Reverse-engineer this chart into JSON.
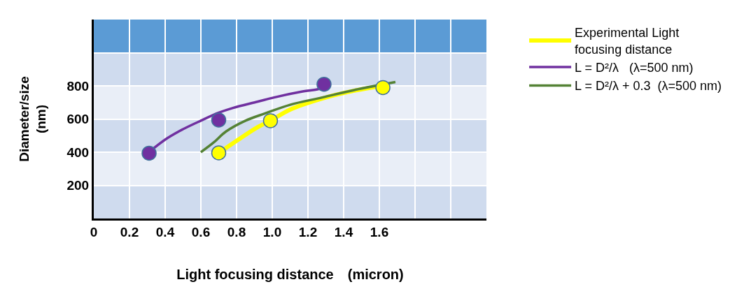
{
  "chart_data": {
    "type": "line",
    "xlabel": "Light focusing distance　(micron)",
    "ylabel": "Diameter/size\n(nm)",
    "xlim": [
      0,
      2.2
    ],
    "ylim": [
      0,
      1200
    ],
    "xticks": [
      {
        "value": 0,
        "label": "0"
      },
      {
        "value": 0.2,
        "label": "0.2"
      },
      {
        "value": 0.4,
        "label": "0.4"
      },
      {
        "value": 0.6,
        "label": "0.6"
      },
      {
        "value": 0.8,
        "label": "0.8"
      },
      {
        "value": 1.0,
        "label": "1.0"
      },
      {
        "value": 1.2,
        "label": "1.2"
      },
      {
        "value": 1.4,
        "label": "1.4"
      },
      {
        "value": 1.6,
        "label": "1.6"
      },
      {
        "value": 1.8,
        "label": null
      },
      {
        "value": 2.0,
        "label": null
      },
      {
        "value": 2.2,
        "label": null
      }
    ],
    "yticks": [
      200,
      400,
      600,
      800,
      {
        "value": 1000,
        "label": null
      }
    ],
    "grid": true,
    "legend": "right",
    "marker": "none",
    "line_style": "solid",
    "bands": [
      {
        "axis": "y",
        "from": 0,
        "to": 200,
        "color": "#cfdbee"
      },
      {
        "axis": "y",
        "from": 400,
        "to": 600,
        "color": "#cfdbee"
      },
      {
        "axis": "y",
        "from": 800,
        "to": 1000,
        "color": "#cfdbee"
      },
      {
        "axis": "y",
        "from": 1000,
        "to": 1200,
        "color": "#5b9bd5"
      }
    ],
    "series": [
      {
        "name": "Experimental Light\nfocusing distance",
        "color": "#ffff00",
        "x": [
          0.72,
          0.81,
          0.92,
          0.99,
          1.1,
          1.28,
          1.46,
          1.62
        ],
        "values": [
          410,
          476,
          552,
          590,
          657,
          724,
          771,
          800
        ]
      },
      {
        "name": "L = D²/λ   (λ=500 nm)",
        "color": "#7030a0",
        "x": [
          0.32,
          0.4,
          0.49,
          0.6,
          0.7,
          0.78,
          0.92,
          1.01,
          1.17,
          1.26,
          1.29
        ],
        "values": [
          410,
          476,
          533,
          590,
          638,
          667,
          705,
          730,
          766,
          781,
          794
        ]
      },
      {
        "name": "L = D²/λ + 0.3  (λ=500 nm)",
        "color": "#548235",
        "x": [
          0.6,
          0.67,
          0.74,
          0.85,
          0.96,
          1.1,
          1.28,
          1.46,
          1.69
        ],
        "values": [
          400,
          457,
          524,
          590,
          634,
          686,
          730,
          775,
          823
        ]
      },
      {
        "type": "scatter",
        "marker": "circle",
        "color": "#7030a0",
        "x": [
          0.31,
          0.7,
          1.29
        ],
        "values": [
          394,
          594,
          810
        ]
      },
      {
        "type": "scatter",
        "marker": "circle",
        "color": "#ffff00",
        "x": [
          0.7,
          0.99,
          1.62
        ],
        "values": [
          396,
          590,
          790
        ]
      }
    ]
  }
}
